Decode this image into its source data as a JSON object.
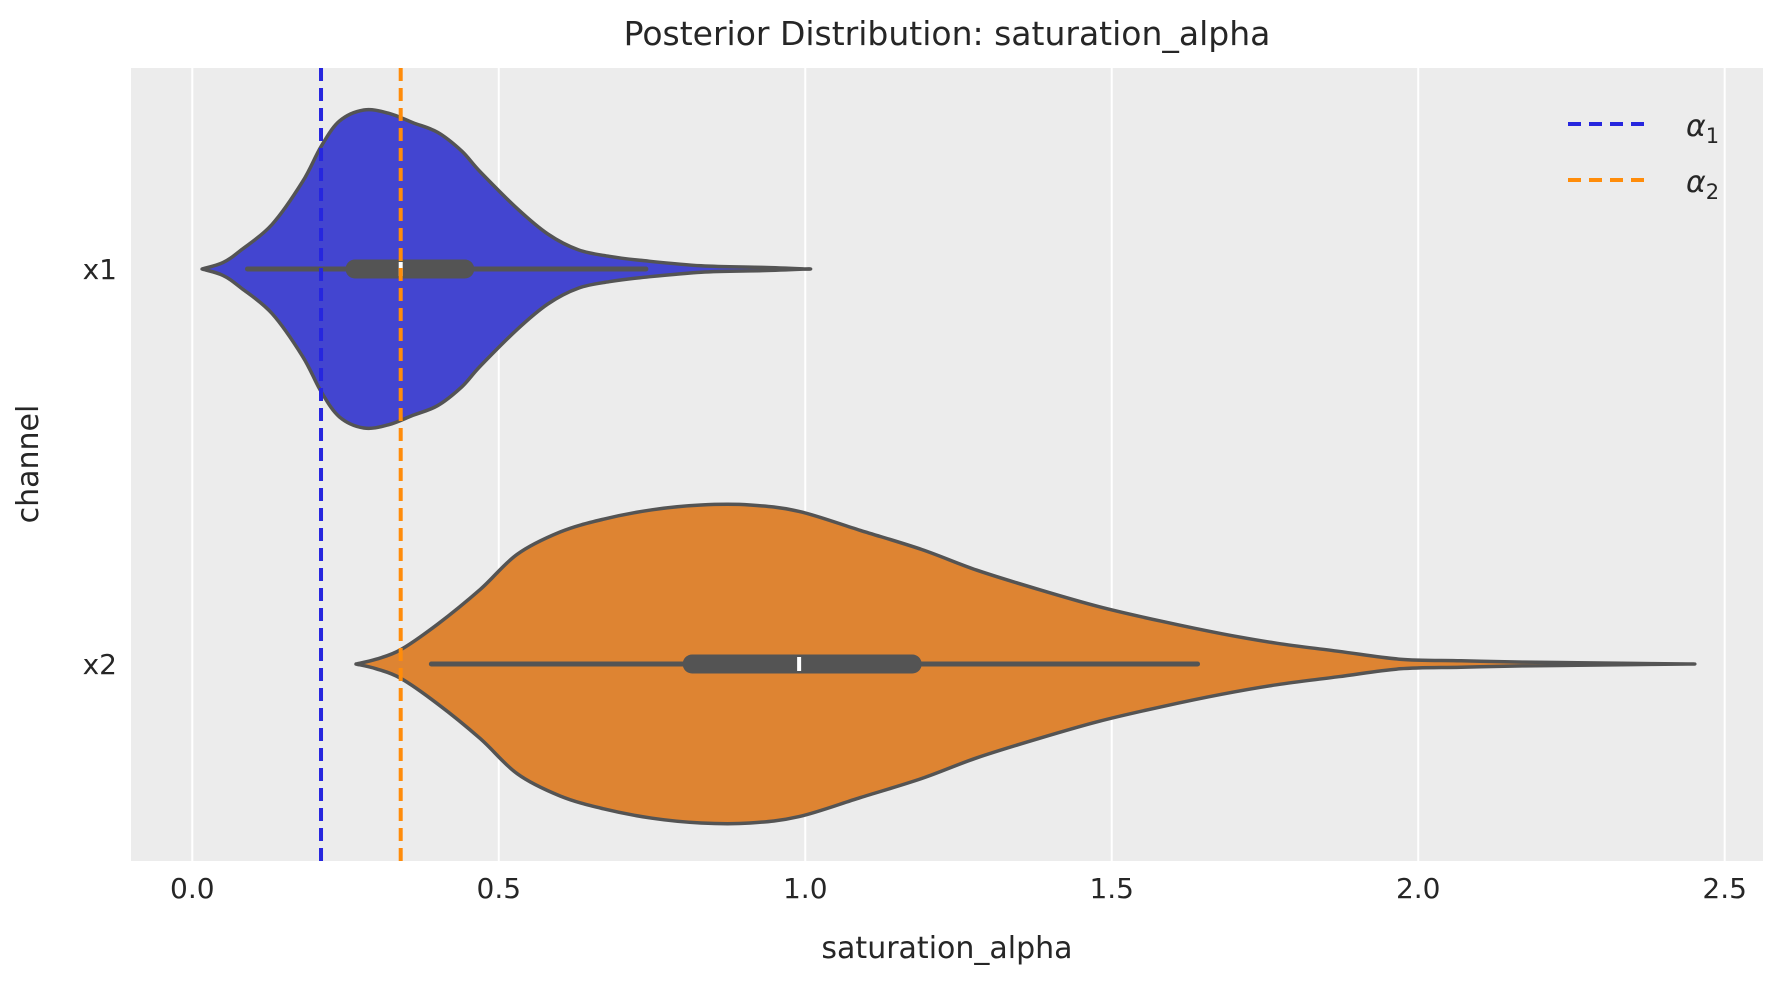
{
  "figure": {
    "title": "Posterior Distribution: saturation_alpha",
    "background": "#ffffff",
    "plot_background": "#ececec",
    "grid_color": "#ffffff",
    "text_color": "#262626",
    "outline_color": "#545454",
    "inner_box_color": "#545454",
    "median_marker_color": "#ffffff"
  },
  "chart_data": {
    "type": "violin",
    "orientation": "horizontal",
    "title": "Posterior Distribution: saturation_alpha",
    "xlabel": "saturation_alpha",
    "ylabel": "channel",
    "grid": "vertical-only",
    "xlim": [
      -0.1,
      2.5625
    ],
    "x_ticks": [
      0.0,
      0.5,
      1.0,
      1.5,
      2.0,
      2.5
    ],
    "x_tick_labels": [
      "0.0",
      "0.5",
      "1.0",
      "1.5",
      "2.0",
      "2.5"
    ],
    "categories": [
      "x1",
      "x2"
    ],
    "legend": {
      "position": "upper right",
      "items": [
        {
          "label_base": "α",
          "label_sub": "1",
          "color": "#2626de",
          "style": "dashed"
        },
        {
          "label_base": "α",
          "label_sub": "2",
          "color": "#ff8c0a",
          "style": "dashed"
        }
      ]
    },
    "ref_lines": [
      {
        "name": "alpha_1",
        "x": 0.21,
        "color": "#2626de",
        "style": "dashed"
      },
      {
        "name": "alpha_2",
        "x": 0.34,
        "color": "#ff8c0a",
        "style": "dashed"
      }
    ],
    "violins": [
      {
        "category": "x1",
        "fill": "#4345d0",
        "median": 0.34,
        "q1": 0.25,
        "q3": 0.46,
        "whisker_lo": 0.09,
        "whisker_hi": 0.74,
        "support": [
          0.016,
          1.0
        ],
        "profile": [
          [
            0.016,
            0
          ],
          [
            0.05,
            0.04
          ],
          [
            0.08,
            0.12
          ],
          [
            0.13,
            0.28
          ],
          [
            0.18,
            0.55
          ],
          [
            0.21,
            0.77
          ],
          [
            0.24,
            0.93
          ],
          [
            0.28,
            1.0
          ],
          [
            0.32,
            0.98
          ],
          [
            0.36,
            0.92
          ],
          [
            0.4,
            0.86
          ],
          [
            0.44,
            0.74
          ],
          [
            0.47,
            0.61
          ],
          [
            0.53,
            0.38
          ],
          [
            0.58,
            0.22
          ],
          [
            0.63,
            0.12
          ],
          [
            0.68,
            0.08
          ],
          [
            0.73,
            0.055
          ],
          [
            0.83,
            0.02
          ],
          [
            0.93,
            0.01
          ],
          [
            1.0,
            0
          ]
        ]
      },
      {
        "category": "x2",
        "fill": "#de8432",
        "median": 0.99,
        "q1": 0.8,
        "q3": 1.19,
        "whisker_lo": 0.39,
        "whisker_hi": 1.64,
        "support": [
          0.27,
          2.44
        ],
        "profile": [
          [
            0.267,
            0
          ],
          [
            0.3,
            0.03
          ],
          [
            0.34,
            0.09
          ],
          [
            0.4,
            0.25
          ],
          [
            0.47,
            0.47
          ],
          [
            0.53,
            0.69
          ],
          [
            0.6,
            0.83
          ],
          [
            0.67,
            0.91
          ],
          [
            0.75,
            0.97
          ],
          [
            0.83,
            1.0
          ],
          [
            0.91,
            1.0
          ],
          [
            0.99,
            0.96
          ],
          [
            1.09,
            0.84
          ],
          [
            1.19,
            0.72
          ],
          [
            1.28,
            0.59
          ],
          [
            1.38,
            0.47
          ],
          [
            1.48,
            0.36
          ],
          [
            1.58,
            0.27
          ],
          [
            1.68,
            0.19
          ],
          [
            1.77,
            0.13
          ],
          [
            1.87,
            0.08
          ],
          [
            1.97,
            0.03
          ],
          [
            2.07,
            0.02
          ],
          [
            2.17,
            0.012
          ],
          [
            2.26,
            0.008
          ],
          [
            2.35,
            0.004
          ],
          [
            2.44,
            0
          ]
        ]
      }
    ]
  }
}
